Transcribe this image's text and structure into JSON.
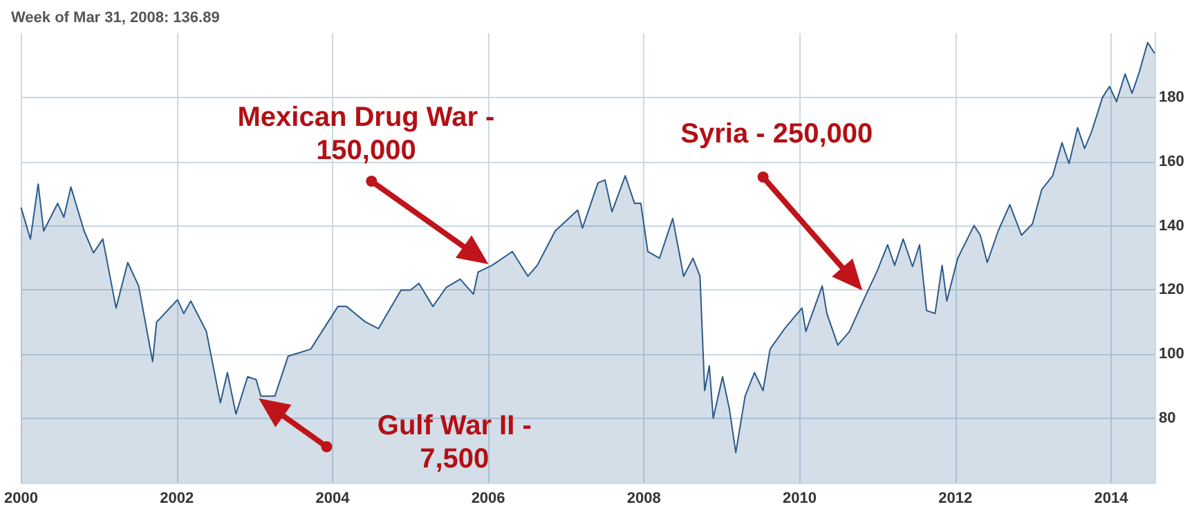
{
  "chart_data": {
    "type": "area",
    "color": "#2a5a8a",
    "x": [
      2000.0,
      2000.12,
      2000.22,
      2000.29,
      2000.47,
      2000.55,
      2000.64,
      2000.81,
      2000.93,
      2001.05,
      2001.22,
      2001.37,
      2001.51,
      2001.69,
      2001.74,
      2002.01,
      2002.09,
      2002.18,
      2002.38,
      2002.56,
      2002.65,
      2002.76,
      2002.91,
      2003.02,
      2003.08,
      2003.26,
      2003.43,
      2003.72,
      2004.07,
      2004.18,
      2004.42,
      2004.59,
      2004.88,
      2005.0,
      2005.11,
      2005.29,
      2005.46,
      2005.64,
      2005.81,
      2005.87,
      2006.05,
      2006.31,
      2006.51,
      2006.63,
      2006.86,
      2007.15,
      2007.21,
      2007.41,
      2007.5,
      2007.59,
      2007.76,
      2007.88,
      2007.96,
      2008.05,
      2008.2,
      2008.37,
      2008.51,
      2008.63,
      2008.72,
      2008.78,
      2008.84,
      2008.89,
      2009.01,
      2009.1,
      2009.18,
      2009.3,
      2009.42,
      2009.53,
      2009.62,
      2009.82,
      2010.03,
      2010.08,
      2010.29,
      2010.35,
      2010.49,
      2010.64,
      2010.84,
      2010.99,
      2011.13,
      2011.22,
      2011.33,
      2011.45,
      2011.54,
      2011.63,
      2011.74,
      2011.83,
      2011.89,
      2012.03,
      2012.24,
      2012.32,
      2012.41,
      2012.55,
      2012.7,
      2012.85,
      2012.99,
      2013.11,
      2013.25,
      2013.37,
      2013.46,
      2013.57,
      2013.66,
      2013.75,
      2013.89,
      2013.98,
      2014.07,
      2014.18,
      2014.27,
      2014.36,
      2014.47,
      2014.56
    ],
    "values": [
      145.7,
      135.9,
      153,
      138.4,
      147,
      142.7,
      152.1,
      138.4,
      131.6,
      135.9,
      114.4,
      128.6,
      121.3,
      97.7,
      110,
      117,
      112.7,
      116.6,
      107.1,
      84.9,
      94.3,
      81.4,
      93,
      92.1,
      87,
      87,
      99.4,
      101.6,
      114.9,
      114.9,
      110.1,
      108,
      120,
      120,
      122.1,
      114.9,
      120.8,
      123.4,
      118.7,
      125.6,
      127.7,
      132,
      124.3,
      127.7,
      138.4,
      144.9,
      139.3,
      153.4,
      154.3,
      144.4,
      155.6,
      147,
      147,
      132,
      129.9,
      142.3,
      124.3,
      129.9,
      124.3,
      88.7,
      96.4,
      80.1,
      93,
      82.7,
      69.4,
      87,
      94.3,
      88.7,
      101.6,
      108.4,
      114.4,
      107.1,
      121.3,
      112.7,
      102.9,
      107.1,
      117.9,
      125.6,
      134.1,
      127.7,
      135.9,
      127.3,
      134.1,
      113.6,
      112.7,
      127.7,
      116.6,
      129.9,
      140.1,
      137.1,
      128.6,
      138.4,
      146.6,
      137.1,
      140.6,
      151.3,
      155.6,
      165.9,
      159.4,
      170.6,
      164.1,
      169.3,
      180,
      183.4,
      178.7,
      187.3,
      181.3,
      187.7,
      197.1,
      193.7
    ],
    "xlim": [
      2000,
      2014.56
    ],
    "xticks": [
      2000,
      2002,
      2004,
      2006,
      2008,
      2010,
      2012,
      2014
    ],
    "ylim": [
      60,
      200
    ],
    "yticks": [
      80,
      100,
      120,
      140,
      160,
      180
    ],
    "grid": true,
    "annotations": [
      "Week of Mar 31, 2008: 136.89",
      "Mexican Drug War -\n150,000",
      "Gulf War II -\n7,500",
      "Syria - 250,000"
    ]
  }
}
